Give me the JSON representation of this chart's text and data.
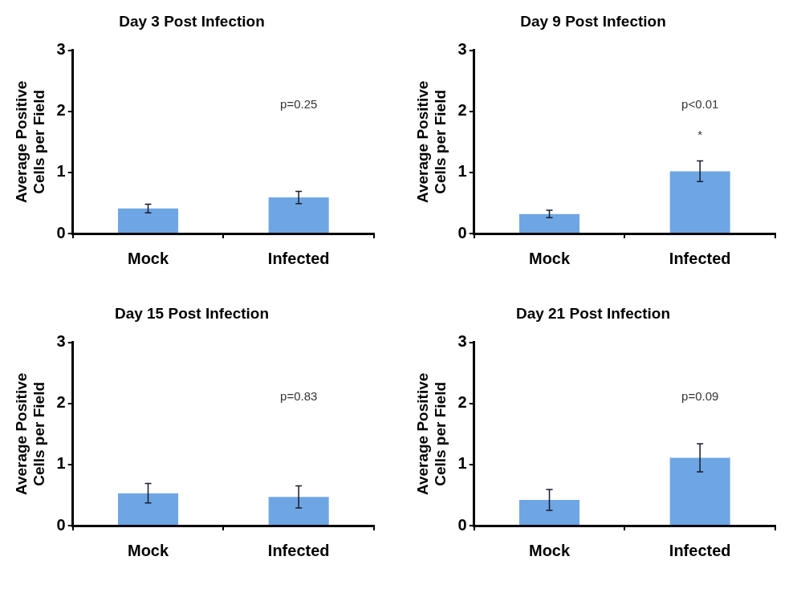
{
  "chart_data": [
    {
      "type": "bar",
      "title": "Day 3 Post Infection",
      "ylabel": "Average Positive Cells per Field",
      "categories": [
        "Mock",
        "Infected"
      ],
      "values": [
        0.41,
        0.59
      ],
      "errors": [
        0.07,
        0.1
      ],
      "color": "#6ea6e4",
      "ylim": [
        0,
        3
      ],
      "yticks": [
        0,
        1,
        2,
        3
      ],
      "grid": false,
      "legend": false,
      "annotations": [
        "p=0.25"
      ]
    },
    {
      "type": "bar",
      "title": "Day 9 Post Infection",
      "ylabel": "Average Positive Cells per Field",
      "categories": [
        "Mock",
        "Infected"
      ],
      "values": [
        0.32,
        1.02
      ],
      "errors": [
        0.06,
        0.17
      ],
      "color": "#6ea6e4",
      "ylim": [
        0,
        3
      ],
      "yticks": [
        0,
        1,
        2,
        3
      ],
      "grid": false,
      "legend": false,
      "annotations": [
        "p<0.01",
        "*"
      ]
    },
    {
      "type": "bar",
      "title": "Day 15 Post Infection",
      "ylabel": "Average Positive Cells per Field",
      "categories": [
        "Mock",
        "Infected"
      ],
      "values": [
        0.53,
        0.47
      ],
      "errors": [
        0.16,
        0.18
      ],
      "color": "#6ea6e4",
      "ylim": [
        0,
        3
      ],
      "yticks": [
        0,
        1,
        2,
        3
      ],
      "grid": false,
      "legend": false,
      "annotations": [
        "p=0.83"
      ]
    },
    {
      "type": "bar",
      "title": "Day 21 Post Infection",
      "ylabel": "Average Positive Cells per Field",
      "categories": [
        "Mock",
        "Infected"
      ],
      "values": [
        0.42,
        1.11
      ],
      "errors": [
        0.17,
        0.23
      ],
      "color": "#6ea6e4",
      "ylim": [
        0,
        3
      ],
      "yticks": [
        0,
        1,
        2,
        3
      ],
      "grid": false,
      "legend": false,
      "annotations": [
        "p=0.09"
      ]
    }
  ]
}
